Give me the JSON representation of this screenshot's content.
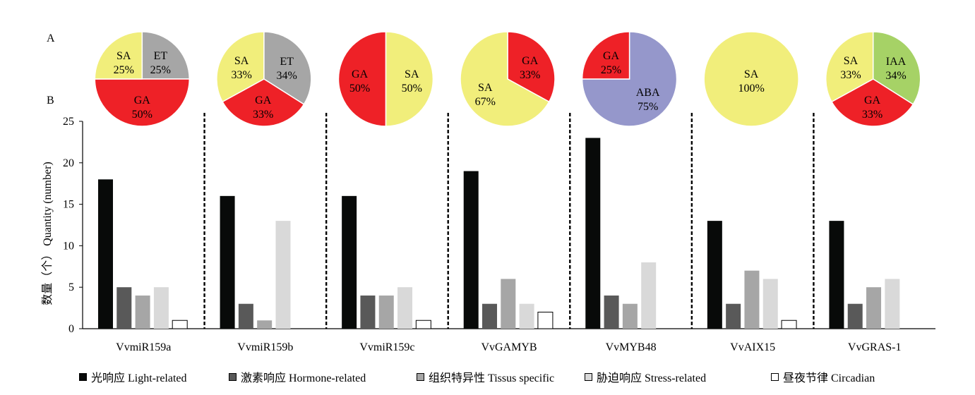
{
  "panel_labels": {
    "a": "A",
    "b": "B"
  },
  "chart_data": [
    {
      "type": "pie",
      "panel": "A",
      "pies": [
        {
          "slices": [
            {
              "label": "ET",
              "percent_label": "25%",
              "value": 25,
              "color": "#a6a6a6"
            },
            {
              "label": "GA",
              "percent_label": "50%",
              "value": 50,
              "color": "#ee2127"
            },
            {
              "label": "SA",
              "percent_label": "25%",
              "value": 25,
              "color": "#f1ee7b"
            }
          ]
        },
        {
          "slices": [
            {
              "label": "ET",
              "percent_label": "34%",
              "value": 34,
              "color": "#a6a6a6"
            },
            {
              "label": "GA",
              "percent_label": "33%",
              "value": 33,
              "color": "#ee2127"
            },
            {
              "label": "SA",
              "percent_label": "33%",
              "value": 33,
              "color": "#f1ee7b"
            }
          ]
        },
        {
          "slices": [
            {
              "label": "SA",
              "percent_label": "50%",
              "value": 50,
              "color": "#f1ee7b"
            },
            {
              "label": "GA",
              "percent_label": "50%",
              "value": 50,
              "color": "#ee2127"
            }
          ]
        },
        {
          "slices": [
            {
              "label": "GA",
              "percent_label": "33%",
              "value": 33,
              "color": "#ee2127"
            },
            {
              "label": "SA",
              "percent_label": "67%",
              "value": 67,
              "color": "#f1ee7b"
            }
          ]
        },
        {
          "slices": [
            {
              "label": "ABA",
              "percent_label": "75%",
              "value": 75,
              "color": "#9597cb"
            },
            {
              "label": "GA",
              "percent_label": "25%",
              "value": 25,
              "color": "#ee2127"
            }
          ]
        },
        {
          "slices": [
            {
              "label": "SA",
              "percent_label": "100%",
              "value": 100,
              "color": "#f1ee7b"
            }
          ]
        },
        {
          "slices": [
            {
              "label": "IAA",
              "percent_label": "34%",
              "value": 34,
              "color": "#a6d266"
            },
            {
              "label": "GA",
              "percent_label": "33%",
              "value": 33,
              "color": "#ee2127"
            },
            {
              "label": "SA",
              "percent_label": "33%",
              "value": 33,
              "color": "#f1ee7b"
            }
          ]
        }
      ]
    },
    {
      "type": "bar",
      "panel": "B",
      "categories": [
        "VvmiR159a",
        "VvmiR159b",
        "VvmiR159c",
        "VvGAMYB",
        "VvMYB48",
        "VvAIX15",
        "VvGRAS-1"
      ],
      "ylabel": "数量（个） Quantity (number)",
      "ylim": [
        0,
        25
      ],
      "yticks": [
        0,
        5,
        10,
        15,
        20,
        25
      ],
      "grid": false,
      "legend_position": "bottom",
      "series": [
        {
          "name": "光响应 Light-related",
          "color": "#080a09",
          "outlined": false,
          "values": [
            18,
            16,
            16,
            19,
            23,
            13,
            13
          ]
        },
        {
          "name": "激素响应 Hormone-related",
          "color": "#595959",
          "outlined": false,
          "values": [
            5,
            3,
            4,
            3,
            4,
            3,
            3
          ]
        },
        {
          "name": "组织特异性 Tissus specific",
          "color": "#a6a6a6",
          "outlined": false,
          "values": [
            4,
            1,
            4,
            6,
            3,
            7,
            5
          ]
        },
        {
          "name": "胁迫响应 Stress-related",
          "color": "#d9d9d9",
          "outlined": false,
          "values": [
            5,
            13,
            5,
            3,
            8,
            6,
            6
          ]
        },
        {
          "name": "昼夜节律 Circadian",
          "color": "#ffffff",
          "outlined": true,
          "values": [
            1,
            0,
            1,
            2,
            0,
            1,
            0
          ]
        }
      ]
    }
  ]
}
